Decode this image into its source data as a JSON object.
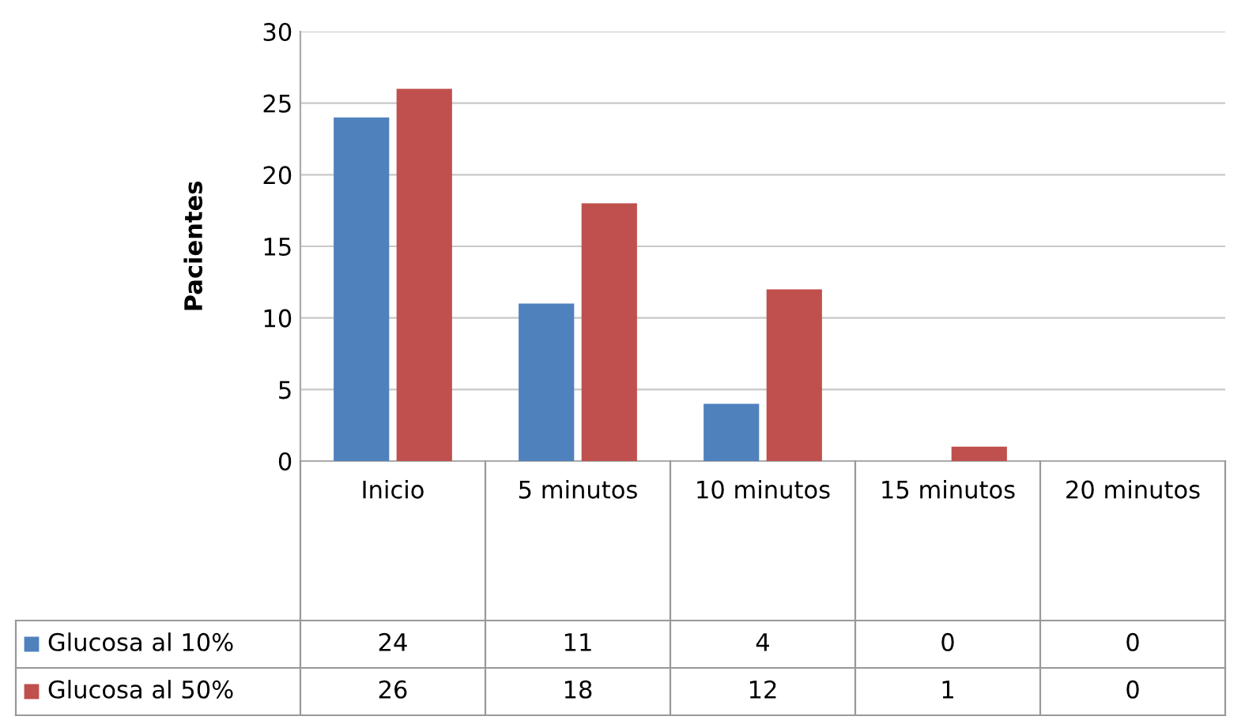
{
  "chart_data": {
    "type": "bar",
    "ylabel": "Pacientes",
    "categories": [
      "Inicio",
      "5 minutos",
      "10 minutos",
      "15 minutos",
      "20 minutos"
    ],
    "series": [
      {
        "name": "Glucosa al 10%",
        "color": "#4f81bd",
        "values": [
          24,
          11,
          4,
          0,
          0
        ]
      },
      {
        "name": "Glucosa al 50%",
        "color": "#c0504d",
        "values": [
          26,
          18,
          12,
          1,
          0
        ]
      }
    ],
    "ylim": [
      0,
      30
    ],
    "yticks": [
      0,
      5,
      10,
      15,
      20,
      25,
      30
    ],
    "grid": "y",
    "legend": "bottom left",
    "data_labels": true
  }
}
